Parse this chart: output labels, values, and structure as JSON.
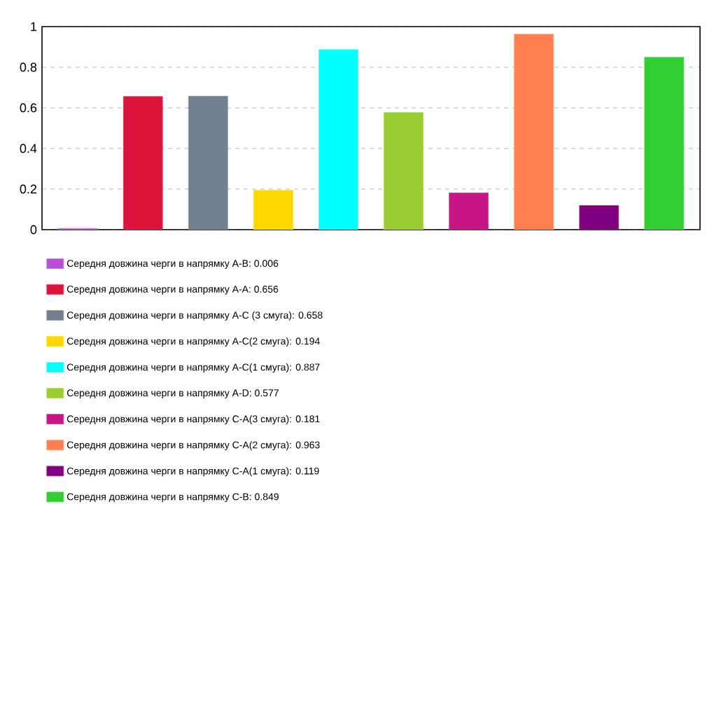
{
  "chart_data": {
    "type": "bar",
    "categories": [
      null,
      null,
      null,
      null,
      null,
      null,
      null,
      null,
      null,
      null
    ],
    "series": [
      {
        "name": "Середня довжина черги в напрямку A-B: 0.006",
        "color": "#b94fd6",
        "values": [
          0.006,
          null,
          null,
          null,
          null,
          null,
          null,
          null,
          null,
          null
        ]
      },
      {
        "name": "Середня довжина черги в напрямку A-A: 0.656",
        "color": "#dc143c",
        "values": [
          null,
          0.656,
          null,
          null,
          null,
          null,
          null,
          null,
          null,
          null
        ]
      },
      {
        "name": "Середня довжина черги в напрямку A-C (3 смуга): 0.658",
        "color": "#708090",
        "values": [
          null,
          null,
          0.658,
          null,
          null,
          null,
          null,
          null,
          null,
          null
        ]
      },
      {
        "name": "Середня довжина черги в напрямку A-C(2 смуга): 0.194",
        "color": "#ffd700",
        "values": [
          null,
          null,
          null,
          0.194,
          null,
          null,
          null,
          null,
          null,
          null
        ]
      },
      {
        "name": "Середня довжина черги в напрямку A-C(1 смуга): 0.887",
        "color": "#00ffff",
        "values": [
          null,
          null,
          null,
          null,
          0.887,
          null,
          null,
          null,
          null,
          null
        ]
      },
      {
        "name": "Середня довжина черги в напрямку A-D: 0.577",
        "color": "#9acd32",
        "values": [
          null,
          null,
          null,
          null,
          null,
          0.577,
          null,
          null,
          null,
          null
        ]
      },
      {
        "name": "Середня довжина черги в напрямку C-A(3 смуга): 0.181",
        "color": "#c71585",
        "values": [
          null,
          null,
          null,
          null,
          null,
          null,
          0.181,
          null,
          null,
          null
        ]
      },
      {
        "name": "Середня довжина черги в напрямку C-A(2 смуга): 0.963",
        "color": "#ff7f50",
        "values": [
          null,
          null,
          null,
          null,
          null,
          null,
          null,
          0.963,
          null,
          null
        ]
      },
      {
        "name": "Середня довжина черги в напрямку C-A(1 смуга): 0.119",
        "color": "#800080",
        "values": [
          null,
          null,
          null,
          null,
          null,
          null,
          null,
          null,
          0.119,
          null
        ]
      },
      {
        "name": "Середня довжина черги в напрямку C-B: 0.849",
        "color": "#32cd32",
        "values": [
          null,
          null,
          null,
          null,
          null,
          null,
          null,
          null,
          null,
          0.849
        ]
      }
    ],
    "ylim": [
      0,
      1
    ],
    "yticks": [
      0,
      0.2,
      0.4,
      0.6,
      0.8,
      1
    ],
    "grid": "y",
    "legend": "bottom"
  }
}
